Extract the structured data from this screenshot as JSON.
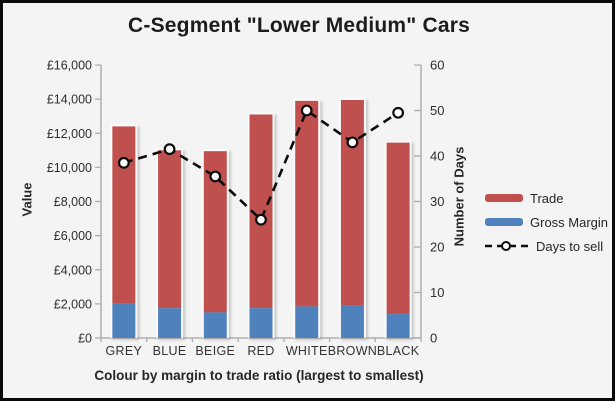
{
  "window": {
    "background": "#f4f4f4",
    "border_color": "#0a0a0a"
  },
  "title": "C-Segment \"Lower Medium\" Cars",
  "chart_data": {
    "type": "combo-stacked-bar-line",
    "title": "C-Segment \"Lower Medium\" Cars",
    "categories": [
      "GREY",
      "BLUE",
      "BEIGE",
      "RED",
      "WHITE",
      "BROWN",
      "BLACK"
    ],
    "series": [
      {
        "name": "Gross Margin",
        "chart": "bar",
        "axis": "left",
        "color": "#4f81bd",
        "values": [
          2000,
          1750,
          1500,
          1750,
          1850,
          1900,
          1400
        ]
      },
      {
        "name": "Trade",
        "chart": "bar",
        "axis": "left",
        "color": "#c0504d",
        "values": [
          10400,
          9250,
          9450,
          11350,
          12050,
          12050,
          10050
        ]
      },
      {
        "name": "Days to sell",
        "chart": "line",
        "axis": "right",
        "color": "#0d0d0d",
        "line_style": "dashed",
        "marker": "circle-white",
        "values": [
          38.5,
          41.5,
          35.5,
          26,
          50,
          43,
          49.5
        ]
      }
    ],
    "stack_totals": [
      12400,
      11000,
      10950,
      13100,
      13900,
      13950,
      11450
    ],
    "axes": {
      "left": {
        "title": "Value",
        "min": 0,
        "max": 16000,
        "step": 2000,
        "labels": [
          "£0",
          "£2,000",
          "£4,000",
          "£6,000",
          "£8,000",
          "£10,000",
          "£12,000",
          "£14,000",
          "£16,000"
        ]
      },
      "right": {
        "title": "Number of Days",
        "min": 0,
        "max": 60,
        "step": 10,
        "labels": [
          "0",
          "10",
          "20",
          "30",
          "40",
          "50",
          "60"
        ]
      },
      "x": {
        "title": "Colour by margin to trade ratio (largest to smallest)"
      }
    },
    "grid": false,
    "legend": {
      "position": "right",
      "items": [
        {
          "label": "Trade",
          "swatch": "bar",
          "color": "#c0504d"
        },
        {
          "label": "Gross Margin",
          "swatch": "bar",
          "color": "#4f81bd"
        },
        {
          "label": "Days to sell",
          "swatch": "dashed-line-marker",
          "color": "#0d0d0d"
        }
      ]
    },
    "colors": {
      "trade": "#c0504d",
      "gross_margin": "#4f81bd",
      "line": "#0d0d0d",
      "marker_fill": "#ffffff",
      "axis": "#aeaeae",
      "tick_text": "#2e2e2e"
    }
  }
}
